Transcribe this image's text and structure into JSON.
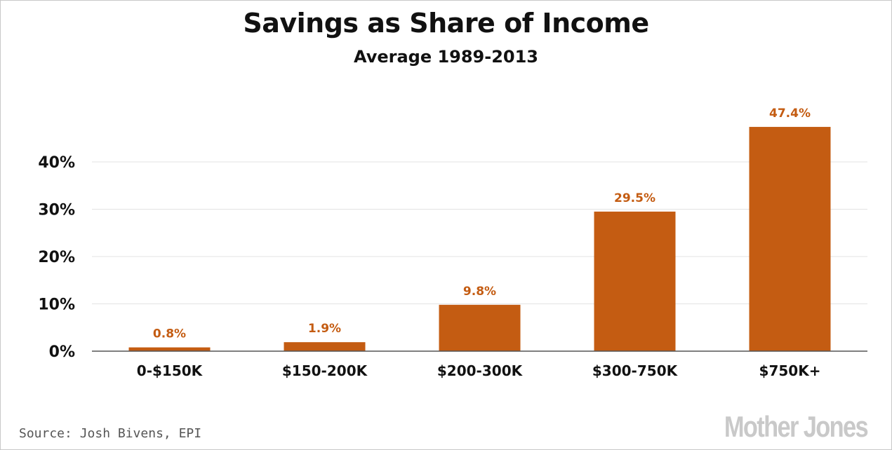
{
  "title": "Savings as Share of Income",
  "subtitle": "Average 1989-2013",
  "source": "Source: Josh Bivens, EPI",
  "logo": "Mother Jones",
  "colors": {
    "bar": "#c45c12",
    "data_label": "#c45c12",
    "grid": "#e3e3e3",
    "axis": "#555555",
    "logo": "#c9c9c9"
  },
  "chart_data": {
    "type": "bar",
    "categories": [
      "0-$150K",
      "$150-200K",
      "$200-300K",
      "$300-750K",
      "$750K+"
    ],
    "values": [
      0.8,
      1.9,
      9.8,
      29.5,
      47.4
    ],
    "data_labels": [
      "0.8%",
      "1.9%",
      "9.8%",
      "29.5%",
      "47.4%"
    ],
    "title": "Savings as Share of Income",
    "subtitle": "Average 1989-2013",
    "yticks": [
      0,
      10,
      20,
      30,
      40
    ],
    "ytick_labels": [
      "0%",
      "10%",
      "20%",
      "30%",
      "40%"
    ],
    "ylim": [
      0,
      47.4
    ],
    "grid": true,
    "legend": "none"
  }
}
